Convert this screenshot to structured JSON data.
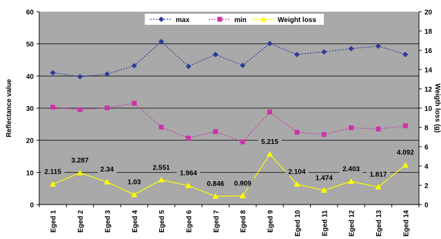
{
  "chart_data": {
    "type": "line",
    "title": "",
    "categories": [
      "Eged 1",
      "Eged 2",
      "Eged 3",
      "Eged 4",
      "Eged 5",
      "Eged 6",
      "Eged 7",
      "Eged 8",
      "Eged 9",
      "Eged 10",
      "Eged 11",
      "Eged 12",
      "Eged 13",
      "Eged 14"
    ],
    "y_left": {
      "label": "Reflectance value",
      "range": [
        0,
        60
      ],
      "ticks": [
        "0",
        "10",
        "20",
        "30",
        "40",
        "50",
        "60"
      ]
    },
    "y_right": {
      "label": "Weigth loss (g)",
      "range": [
        0,
        20
      ],
      "ticks": [
        "0",
        "2",
        "4",
        "6",
        "8",
        "10",
        "12",
        "14",
        "16",
        "18",
        "20"
      ]
    },
    "grid": "horizontal",
    "legend_position": "top-center",
    "series": [
      {
        "name": "max",
        "axis": "left",
        "marker": "diamond",
        "color": "#2e3a9a",
        "values": [
          41,
          39.8,
          40.6,
          43.2,
          50.7,
          43,
          46.7,
          43.3,
          50.1,
          46.7,
          47.5,
          48.5,
          49.3,
          46.7
        ]
      },
      {
        "name": "min",
        "axis": "left",
        "marker": "square",
        "color": "#cc33aa",
        "values": [
          30.3,
          29.5,
          30.1,
          31.5,
          24.1,
          20.7,
          22.7,
          19.5,
          28.8,
          22.5,
          21.8,
          23.9,
          23.5,
          24.5
        ]
      },
      {
        "name": "Weight loss",
        "axis": "right",
        "marker": "triangle",
        "color": "#ffff00",
        "values": [
          2.115,
          3.287,
          2.34,
          1.03,
          2.551,
          1.964,
          0.846,
          0.909,
          5.215,
          2.104,
          1.474,
          2.403,
          1.817,
          4.092
        ],
        "labels": [
          "2.115",
          "3.287",
          "2.34",
          "1.03",
          "2.551",
          "1.964",
          "0.846",
          "0.909",
          "5.215",
          "2.104",
          "1.474",
          "2.403",
          "1.817",
          "4.092"
        ]
      }
    ],
    "colors": {
      "background": "#a9a9a9",
      "grid": "#222222"
    }
  }
}
